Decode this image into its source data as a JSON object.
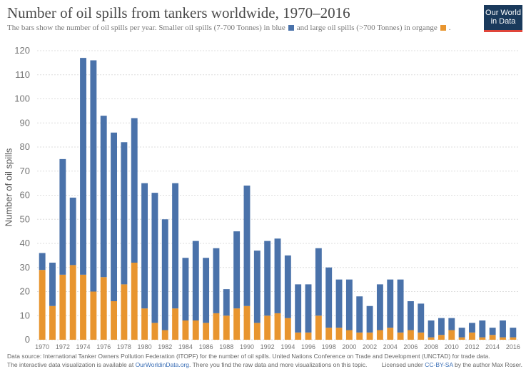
{
  "header": {
    "title": "Number of oil spills from tankers worldwide, 1970–2016",
    "subtitle_part1": "The bars show the number of oil spills per year.  Smaller oil spills (7-700 Tonnes) in blue",
    "subtitle_part2": "and large oil spills (>700 Tonnes) in organge",
    "subtitle_part3": ".",
    "logo_line1": "Our World",
    "logo_line2": "in Data"
  },
  "colors": {
    "small": "#4a72aa",
    "large": "#e8952f",
    "grid": "#dddddd",
    "axis_text": "#777777"
  },
  "footer": {
    "source": "Data source: International Tanker Owners Pollution Federation (ITOPF) for the number of oil spills. United Nations Conference on Trade and Development (UNCTAD) for trade data.",
    "interactive_prefix": "The interactive data visualization is available at",
    "interactive_link": "OurWorldinData.org",
    "interactive_suffix": ". There you find the raw data and more visualizations on this topic.",
    "license_prefix": "Licensed under",
    "license_link": "CC-BY-SA",
    "license_suffix": "by the author Max Roser."
  },
  "chart_data": {
    "type": "bar",
    "stacked": true,
    "title": "Number of oil spills from tankers worldwide, 1970–2016",
    "ylabel": "Number of oil spills",
    "xlabel": "",
    "ylim": [
      0,
      120
    ],
    "yticks": [
      0,
      10,
      20,
      30,
      40,
      50,
      60,
      70,
      80,
      90,
      100,
      110,
      120
    ],
    "grid": true,
    "categories": [
      "1970",
      "1971",
      "1972",
      "1973",
      "1974",
      "1975",
      "1976",
      "1977",
      "1978",
      "1979",
      "1980",
      "1981",
      "1982",
      "1983",
      "1984",
      "1985",
      "1986",
      "1987",
      "1988",
      "1989",
      "1990",
      "1991",
      "1992",
      "1993",
      "1994",
      "1995",
      "1996",
      "1997",
      "1998",
      "1999",
      "2000",
      "2001",
      "2002",
      "2003",
      "2004",
      "2005",
      "2006",
      "2007",
      "2008",
      "2009",
      "2010",
      "2011",
      "2012",
      "2013",
      "2014",
      "2015",
      "2016"
    ],
    "xtick_labels": [
      "1970",
      "1972",
      "1974",
      "1976",
      "1978",
      "1980",
      "1982",
      "1984",
      "1986",
      "1988",
      "1990",
      "1992",
      "1994",
      "1996",
      "1998",
      "2000",
      "2002",
      "2004",
      "2006",
      "2008",
      "2010",
      "2012",
      "2014",
      "2016"
    ],
    "series": [
      {
        "name": "large oil spills (>700 Tonnes)",
        "values": [
          29,
          14,
          27,
          31,
          27,
          20,
          26,
          16,
          23,
          32,
          13,
          7,
          4,
          13,
          8,
          8,
          7,
          11,
          10,
          13,
          14,
          7,
          10,
          11,
          9,
          3,
          3,
          10,
          5,
          5,
          4,
          3,
          3,
          4,
          5,
          3,
          4,
          3,
          1,
          2,
          4,
          1,
          3,
          1,
          2,
          1,
          1
        ]
      },
      {
        "name": "Smaller oil spills (7-700 Tonnes)",
        "values": [
          7,
          18,
          48,
          28,
          90,
          96,
          67,
          70,
          59,
          60,
          52,
          54,
          46,
          52,
          26,
          33,
          27,
          27,
          11,
          32,
          50,
          30,
          31,
          31,
          26,
          20,
          20,
          28,
          25,
          20,
          21,
          15,
          11,
          19,
          20,
          22,
          12,
          12,
          7,
          7,
          5,
          4,
          4,
          7,
          3,
          7,
          4
        ]
      }
    ]
  }
}
